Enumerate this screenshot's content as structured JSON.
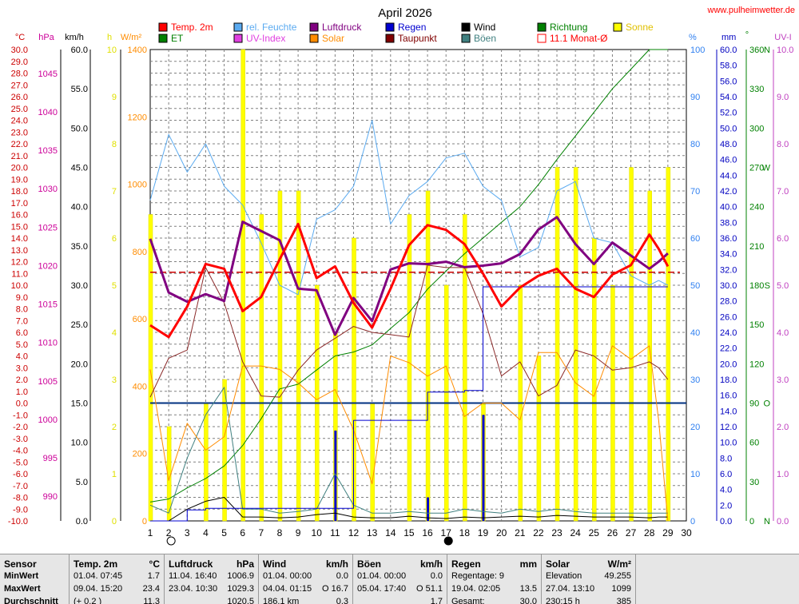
{
  "title": "April 2026",
  "site": "www.pulheimwetter.de",
  "legend": [
    {
      "label": "Temp. 2m",
      "color": "#ff0000",
      "fill": true
    },
    {
      "label": "rel. Feuchte",
      "color": "#5aaaf0",
      "fill": true
    },
    {
      "label": "Luftdruck",
      "color": "#800080",
      "fill": true
    },
    {
      "label": "Regen",
      "color": "#0000d0",
      "fill": true
    },
    {
      "label": "Wind",
      "color": "#000000",
      "fill": true
    },
    {
      "label": "Richtung",
      "color": "#008000",
      "fill": true
    },
    {
      "label": "Sonne",
      "color": "#ffff00",
      "fill": true
    },
    {
      "label": "ET",
      "color": "#008000",
      "fill": true
    },
    {
      "label": "UV-Index",
      "color": "#e040e0",
      "fill": true
    },
    {
      "label": "Solar",
      "color": "#ff8c00",
      "fill": true
    },
    {
      "label": "Taupunkt",
      "color": "#800000",
      "fill": true
    },
    {
      "label": "Böen",
      "color": "#408080",
      "fill": true
    },
    {
      "label": "11.1 Monat-Ø",
      "color": "#ff0000",
      "fill": false
    }
  ],
  "axes": {
    "temp": {
      "unit": "°C",
      "color": "#cc0000",
      "min": -10,
      "max": 30,
      "step": 1
    },
    "pressure": {
      "unit": "hPa",
      "color": "#cc0099",
      "ticks": [
        990,
        995,
        1000,
        1005,
        1010,
        1015,
        1020,
        1025,
        1030,
        1035,
        1040,
        1045
      ]
    },
    "wind": {
      "unit": "km/h",
      "color": "#000000",
      "min": 0,
      "max": 60,
      "step": 5
    },
    "sun": {
      "unit": "h",
      "color": "#e0e000",
      "ticks": [
        0,
        1,
        2,
        3,
        4,
        5,
        6,
        7,
        8,
        9,
        10
      ]
    },
    "solar": {
      "unit": "W/m²",
      "color": "#ff8c00",
      "ticks": [
        0,
        200,
        400,
        600,
        800,
        1000,
        1200,
        1400
      ]
    },
    "humidity": {
      "unit": "%",
      "color": "#3080f0",
      "ticks": [
        0,
        10,
        20,
        30,
        40,
        50,
        60,
        70,
        80,
        90,
        100
      ]
    },
    "rain": {
      "unit": "mm",
      "color": "#0000c0",
      "min": 0,
      "max": 60,
      "step": 2
    },
    "direction": {
      "unit": "°",
      "color": "#008000",
      "ticks": [
        {
          "v": 0,
          "l": "0"
        },
        {
          "v": 30,
          "l": "30"
        },
        {
          "v": 60,
          "l": "60"
        },
        {
          "v": 90,
          "l": "90"
        },
        {
          "v": 120,
          "l": "120"
        },
        {
          "v": 150,
          "l": "150"
        },
        {
          "v": 180,
          "l": "180"
        },
        {
          "v": 210,
          "l": "210"
        },
        {
          "v": 240,
          "l": "240"
        },
        {
          "v": 270,
          "l": "270"
        },
        {
          "v": 300,
          "l": "300"
        },
        {
          "v": 330,
          "l": "330"
        },
        {
          "v": 360,
          "l": "360"
        }
      ],
      "compass": [
        {
          "v": 0,
          "l": "N"
        },
        {
          "v": 90,
          "l": "O"
        },
        {
          "v": 180,
          "l": "S"
        },
        {
          "v": 270,
          "l": "W"
        },
        {
          "v": 360,
          "l": "N"
        }
      ]
    },
    "uv": {
      "unit": "UV-I",
      "color": "#c040c0",
      "ticks": [
        "0.0",
        "1.0",
        "2.0",
        "3.0",
        "4.0",
        "5.0",
        "6.0",
        "7.0",
        "8.0",
        "9.0",
        "10.0"
      ]
    },
    "days": [
      "1",
      "2",
      "3",
      "4",
      "5",
      "6",
      "7",
      "8",
      "9",
      "10",
      "11",
      "12",
      "13",
      "14",
      "15",
      "16",
      "17",
      "18",
      "19",
      "20",
      "21",
      "22",
      "23",
      "24",
      "25",
      "26",
      "27",
      "28",
      "29",
      "30"
    ]
  },
  "chart_data": {
    "type": "line",
    "x": [
      1,
      2,
      3,
      4,
      5,
      6,
      7,
      8,
      9,
      10,
      11,
      12,
      13,
      14,
      15,
      16,
      17,
      18,
      19,
      20,
      21,
      22,
      23,
      24,
      25,
      26,
      27,
      28,
      28.5,
      29
    ],
    "series": [
      {
        "name": "Temp. 2m",
        "color": "#ff0000",
        "width": 3,
        "axis": "temp",
        "values": [
          6.6,
          5.6,
          8.2,
          11.8,
          11.4,
          7.8,
          9.0,
          12.2,
          15.2,
          10.6,
          11.6,
          8.5,
          6.4,
          9.7,
          13.4,
          15.1,
          14.7,
          13.5,
          11.0,
          8.2,
          9.8,
          10.8,
          11.4,
          9.7,
          9.0,
          10.9,
          11.7,
          14.3,
          13.1,
          11.6
        ]
      },
      {
        "name": "rel. Feuchte",
        "color": "#5aaaf0",
        "width": 1,
        "axis": "humidity",
        "values": [
          68,
          82,
          74,
          80,
          71,
          67,
          59,
          50,
          48,
          64,
          66,
          71,
          85,
          63,
          69,
          72,
          77,
          78,
          71,
          68,
          56,
          58,
          70,
          72,
          60,
          59,
          52,
          50,
          51,
          50
        ]
      },
      {
        "name": "Luftdruck",
        "color": "#800080",
        "width": 3,
        "axis": "pressure",
        "values": [
          1023.5,
          1016.5,
          1015.3,
          1016.3,
          1015.4,
          1025.7,
          1024.5,
          1023.3,
          1017.0,
          1016.8,
          1011.0,
          1015.8,
          1012.8,
          1019.5,
          1020.3,
          1020.2,
          1020.5,
          1019.8,
          1020.0,
          1020.3,
          1021.5,
          1024.7,
          1026.3,
          1022.8,
          1020.2,
          1023.0,
          1021.3,
          1019.6,
          1020.5,
          1021.6
        ]
      },
      {
        "name": "Taupunkt",
        "color": "#8b2a2a",
        "width": 1,
        "axis": "temp",
        "values": [
          0.5,
          3.8,
          4.5,
          11.5,
          8.5,
          3.5,
          0.6,
          0.5,
          2.8,
          4.5,
          5.5,
          6.5,
          6.0,
          5.8,
          5.6,
          11.7,
          11.5,
          11.5,
          7.6,
          2.3,
          3.5,
          0.6,
          1.5,
          4.5,
          4.0,
          2.8,
          3.0,
          3.5,
          3.0,
          2.0
        ]
      },
      {
        "name": "Solar",
        "color": "#ff8c00",
        "width": 1,
        "axis": "solar",
        "values": [
          450,
          120,
          290,
          210,
          250,
          460,
          460,
          450,
          410,
          360,
          390,
          270,
          110,
          490,
          470,
          430,
          460,
          310,
          350,
          350,
          300,
          500,
          500,
          410,
          370,
          520,
          480,
          520,
          300,
          0
        ]
      },
      {
        "name": "Regen",
        "color": "#0000d0",
        "width": 1,
        "axis": "rain",
        "step": true,
        "values": [
          0,
          0,
          1.4,
          1.6,
          1.6,
          1.6,
          1.6,
          1.6,
          1.6,
          1.6,
          1.6,
          12.8,
          12.8,
          12.8,
          12.8,
          16.4,
          16.4,
          16.6,
          29.8,
          29.8,
          29.8,
          29.8,
          29.8,
          29.8,
          29.8,
          29.8,
          29.8,
          29.8,
          29.8,
          29.8
        ]
      },
      {
        "name": "ET",
        "color": "#008000",
        "width": 1,
        "axis": "rain",
        "values": [
          2.4,
          2.8,
          4.2,
          5.4,
          7.0,
          9.6,
          13.0,
          16.8,
          17.4,
          19.2,
          21.0,
          21.5,
          22.4,
          24.5,
          26.5,
          29.5,
          31.8,
          34.0,
          36.0,
          38.0,
          40.0,
          42.8,
          46.0,
          49.0,
          52.0,
          55.0,
          57.5,
          60.0,
          60.0,
          60.0
        ]
      },
      {
        "name": "Wind",
        "color": "#000000",
        "width": 1,
        "axis": "wind",
        "values": [
          0,
          0,
          1.5,
          2.5,
          3.0,
          0.5,
          0.5,
          0.4,
          0.5,
          0.8,
          1.0,
          0.5,
          0.4,
          0.4,
          0.6,
          0.4,
          0.3,
          0.5,
          0.4,
          0.5,
          0.6,
          0.5,
          0.7,
          0.6,
          0.5,
          0.5,
          0.5,
          0.4,
          0.5,
          0.5
        ]
      },
      {
        "name": "Böen",
        "color": "#408080",
        "width": 1,
        "axis": "wind",
        "values": [
          2.0,
          1.0,
          8.0,
          13.5,
          17.0,
          1.5,
          1.5,
          1.0,
          1.2,
          1.5,
          6.0,
          2.0,
          1.0,
          1.0,
          1.2,
          1.0,
          1.0,
          1.5,
          1.2,
          1.0,
          1.5,
          1.2,
          1.5,
          1.2,
          1.0,
          1.0,
          1.0,
          1.0,
          1.0,
          1.0
        ]
      }
    ],
    "sun_hours": [
      6.5,
      2.0,
      0,
      2.5,
      3.0,
      10.0,
      6.5,
      7.0,
      7.0,
      5.0,
      4.0,
      6.0,
      2.5,
      0,
      6.5,
      7.0,
      5.0,
      6.5,
      2.5,
      0,
      5.0,
      3.5,
      7.5,
      7.5,
      6.0,
      5.0,
      7.5,
      7.0,
      7.5,
      0
    ],
    "rain_daily": [
      {
        "day": 11,
        "mm": 11.5
      },
      {
        "day": 16,
        "mm": 3.0
      },
      {
        "day": 19,
        "mm": 13.5
      }
    ],
    "monthly_avg_temp": 11.1,
    "direction_avg": 90,
    "direction_series": [
      1013.6,
      1013.6
    ],
    "moon": [
      {
        "day": 2,
        "phase": "full"
      },
      {
        "day": 17,
        "phase": "new"
      }
    ],
    "xlim": [
      1,
      30
    ]
  },
  "stats": {
    "labels": {
      "head": "Sensor",
      "min": "MinWert",
      "max": "MaxWert",
      "avg": "Durchschnitt"
    },
    "temp": {
      "head": "Temp. 2m",
      "unit": "°C",
      "min": {
        "l": "01.04.  07:45",
        "r": "1.7"
      },
      "max": {
        "l": "09.04.  15:20",
        "r": "23.4"
      },
      "avg": {
        "l": "(+ 0.2 )",
        "r": "11.3"
      }
    },
    "pressure": {
      "head": "Luftdruck",
      "unit": "hPa",
      "min": {
        "l": "11.04.  16:40",
        "r": "1006.9"
      },
      "max": {
        "l": "23.04.  10:30",
        "r": "1029.3"
      },
      "avg": {
        "l": "",
        "r": "1020.5"
      }
    },
    "wind": {
      "head": "Wind",
      "unit": "km/h",
      "min": {
        "l": "01.04.  00:00",
        "r": "0.0"
      },
      "max": {
        "l": "04.04.  01:15",
        "r": "O 16.7"
      },
      "avg": {
        "l": "186.1 km",
        "r": "0.3"
      }
    },
    "gust": {
      "head": "Böen",
      "unit": "km/h",
      "min": {
        "l": "01.04.  00:00",
        "r": "0.0"
      },
      "max": {
        "l": "05.04.  17:40",
        "r": "O 51.1"
      },
      "avg": {
        "l": "",
        "r": "1.7"
      }
    },
    "rain": {
      "head": "Regen",
      "unit": "mm",
      "min": {
        "l": "Regentage: 9",
        "r": ""
      },
      "max": {
        "l": "19.04.  02:05",
        "r": "13.5"
      },
      "avg": {
        "l": "Gesamt:",
        "r": "30.0"
      }
    },
    "solar": {
      "head": "Solar",
      "unit": "W/m²",
      "min": {
        "l": "Elevation",
        "r": "49.255"
      },
      "max": {
        "l": "27.04.  13:10",
        "r": "1099"
      },
      "avg": {
        "l": "230:15 h",
        "r": "385"
      }
    }
  }
}
